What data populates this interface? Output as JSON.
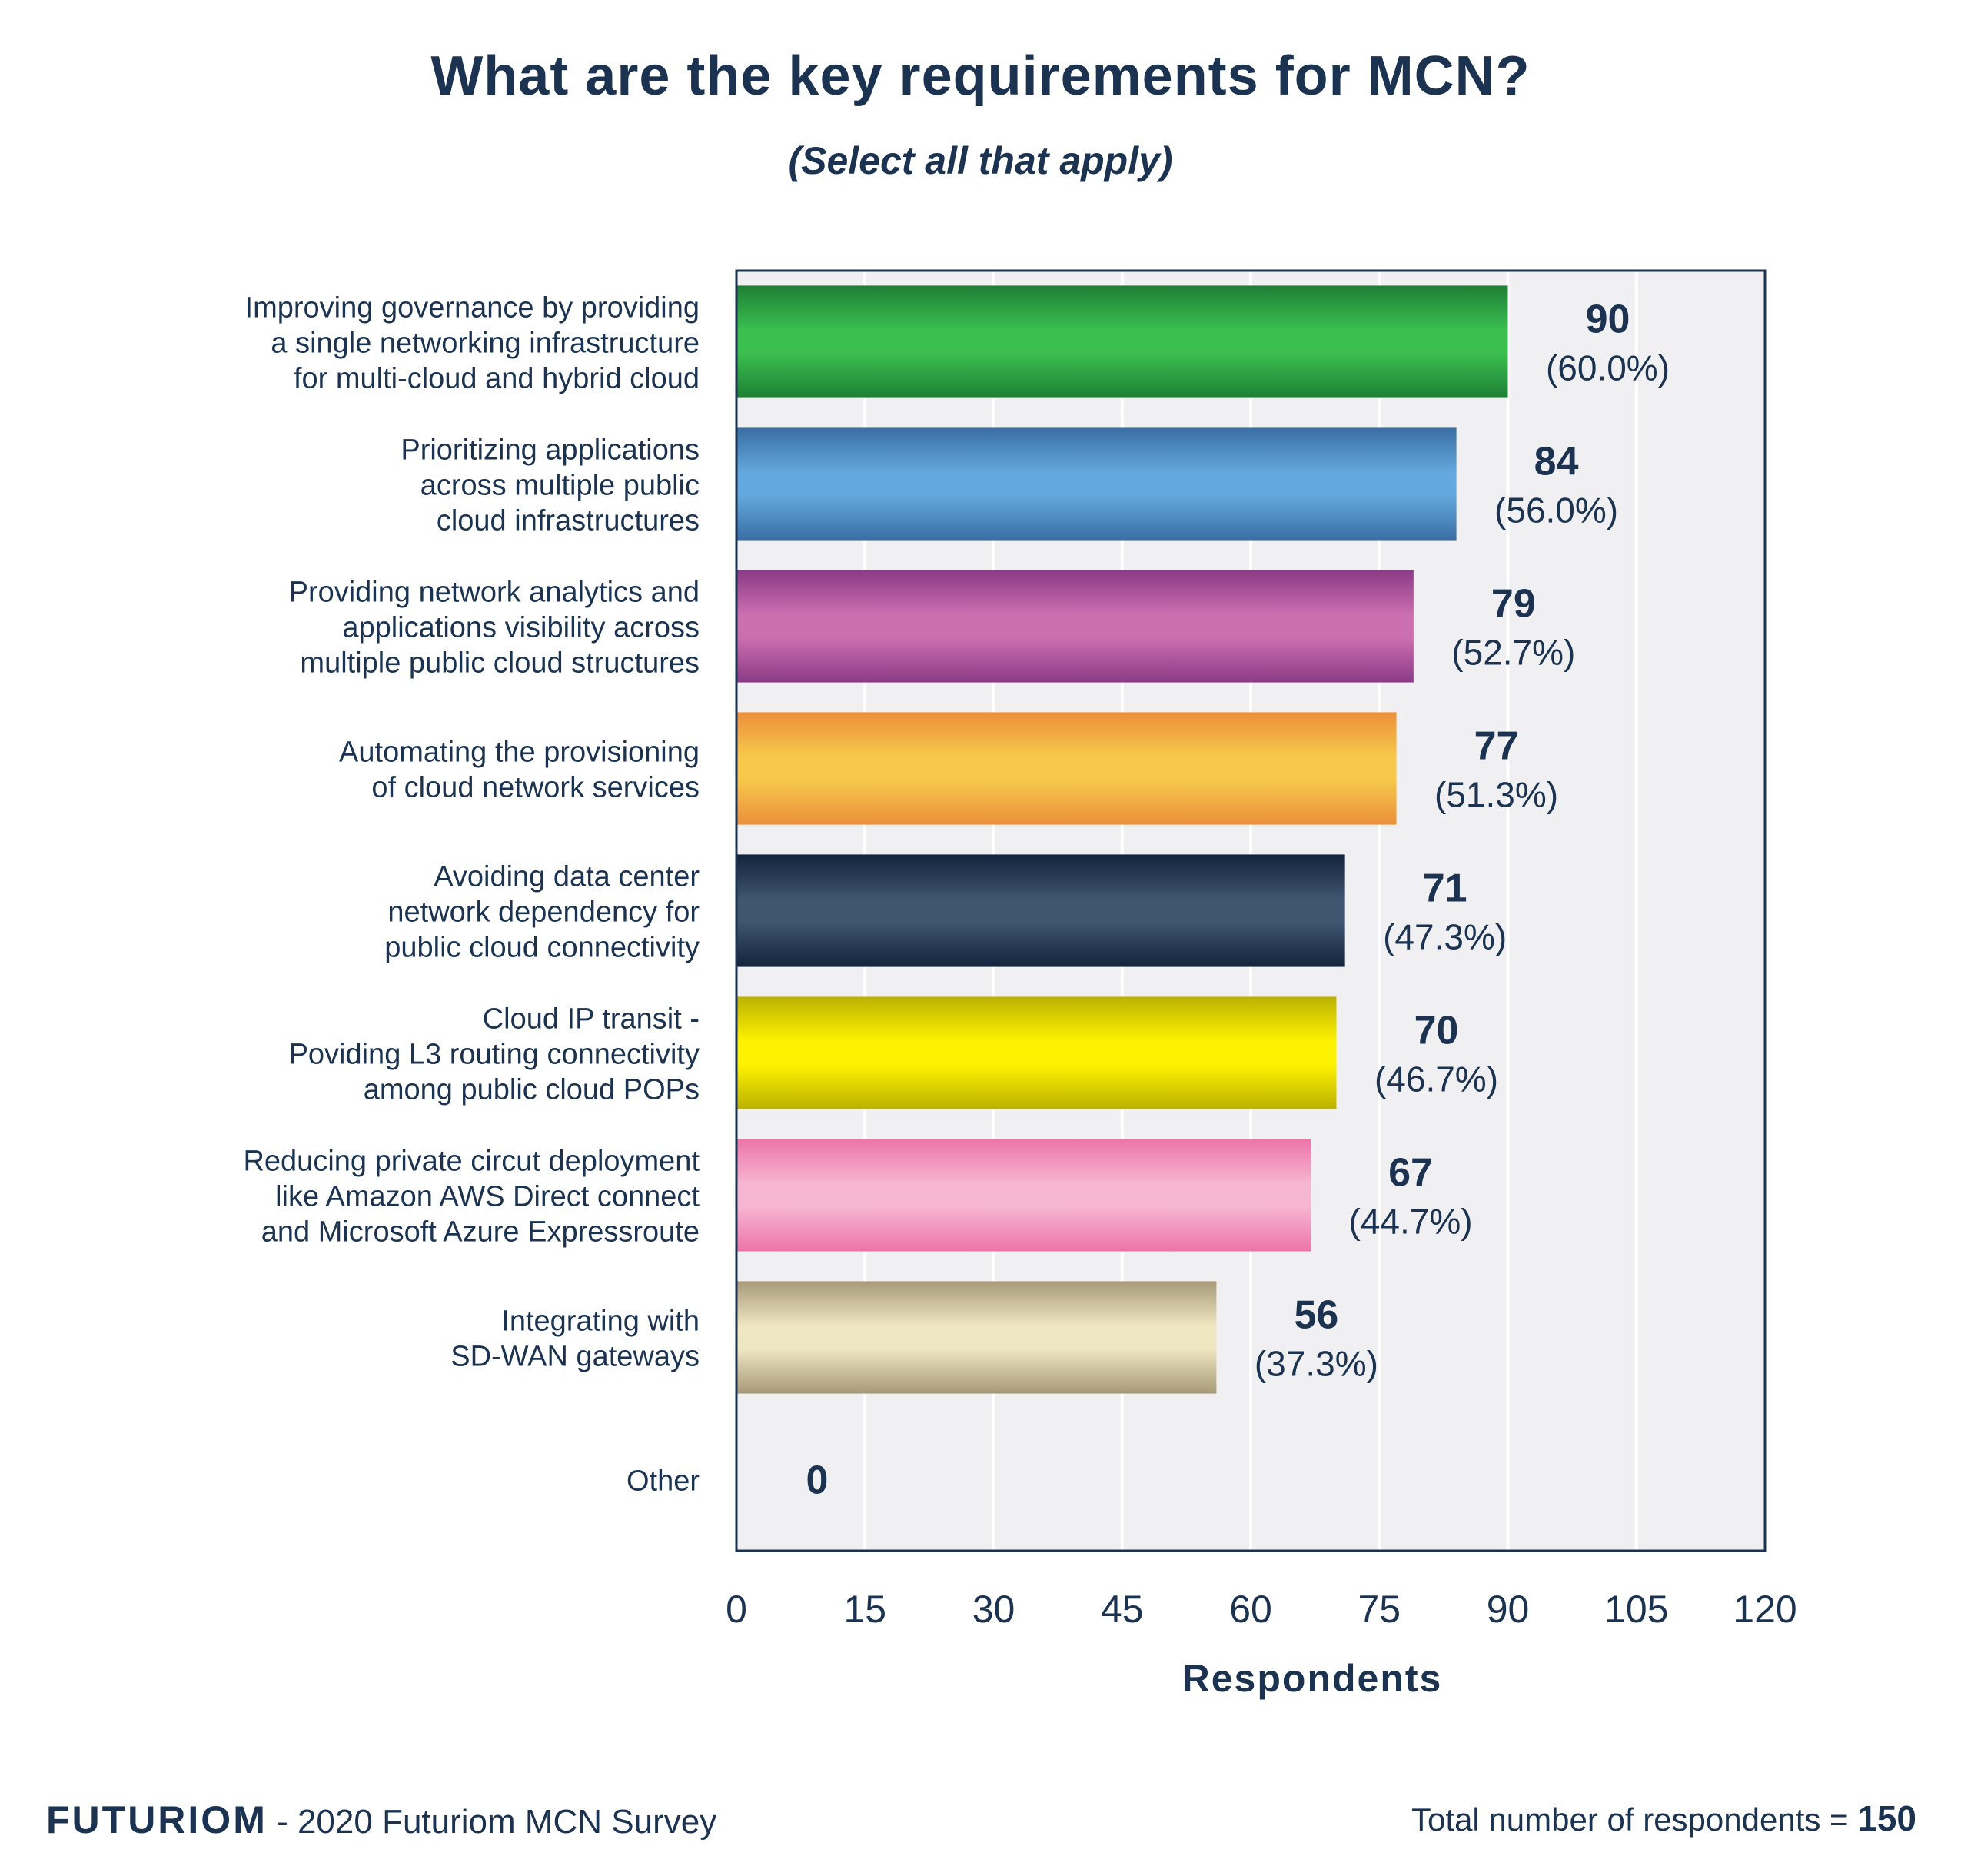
{
  "footer": {
    "brand": "FUTURIOM",
    "source": "- 2020 Futuriom MCN Survey",
    "total_label": "Total number of respondents =",
    "total_value": "150"
  },
  "colors": {
    "text": "#1b3350",
    "plot_bg": "#f0f0f3",
    "axis": "#1b3350"
  },
  "chart_data": {
    "type": "bar",
    "orientation": "horizontal",
    "title": "What are the key requirements for MCN?",
    "subtitle": "(Select all that apply)",
    "xlabel": "Respondents",
    "ylabel": "",
    "xlim": [
      0,
      120
    ],
    "xticks": [
      0,
      15,
      30,
      45,
      60,
      75,
      90,
      105,
      120
    ],
    "grid": "vertical",
    "categories": [
      [
        "Improving governance by providing",
        "a single networking infrastructure",
        "for multi-cloud and hybrid cloud"
      ],
      [
        "Prioritizing applications",
        "across multiple public",
        "cloud infrastructures"
      ],
      [
        "Providing network analytics and",
        "applications visibility across",
        "multiple public cloud structures"
      ],
      [
        "Automating the provisioning",
        "of cloud network services"
      ],
      [
        "Avoiding data center",
        "network dependency for",
        "public cloud connectivity"
      ],
      [
        "Cloud IP transit -",
        "Poviding L3 routing connectivity",
        "among public cloud POPs"
      ],
      [
        "Reducing private circut deployment",
        "like Amazon AWS Direct connect",
        "and Microsoft Azure Expressroute"
      ],
      [
        "Integrating with",
        "SD-WAN gateways"
      ],
      [
        "Other"
      ]
    ],
    "values": [
      90,
      84,
      79,
      77,
      71,
      70,
      67,
      56,
      0
    ],
    "percent_labels": [
      "(60.0%)",
      "(56.0%)",
      "(52.7%)",
      "(51.3%)",
      "(47.3%)",
      "(46.7%)",
      "(44.7%)",
      "(37.3%)",
      ""
    ],
    "bar_colors": [
      {
        "edge": "#1e7f36",
        "mid": "#3bbf4f"
      },
      {
        "edge": "#3a6ea4",
        "mid": "#63a8de"
      },
      {
        "edge": "#8a3a86",
        "mid": "#cc6fb0"
      },
      {
        "edge": "#ec8f3a",
        "mid": "#f7c84c"
      },
      {
        "edge": "#13233c",
        "mid": "#3f5570"
      },
      {
        "edge": "#bbb200",
        "mid": "#fff200"
      },
      {
        "edge": "#ec74a8",
        "mid": "#f6b6d2"
      },
      {
        "edge": "#a89a78",
        "mid": "#efe6c2"
      },
      {
        "edge": "#cccccc",
        "mid": "#eeeeee"
      }
    ]
  }
}
